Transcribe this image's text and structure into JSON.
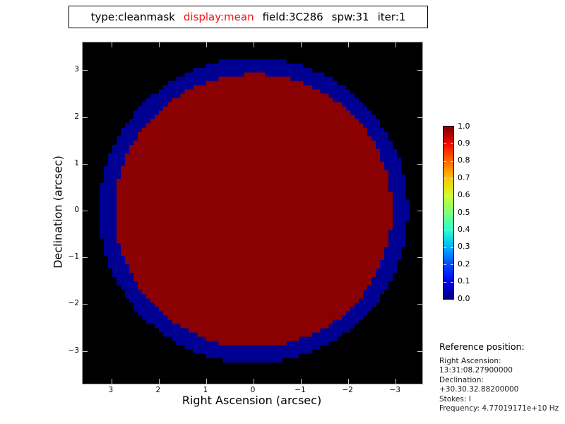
{
  "title_box": {
    "segments": [
      {
        "text": "type:cleanmask",
        "color": "#000000"
      },
      {
        "text": "display:mean",
        "color": "#f21414"
      },
      {
        "text": "field:3C286",
        "color": "#000000"
      },
      {
        "text": "spw:31",
        "color": "#000000"
      },
      {
        "text": "iter:1",
        "color": "#000000"
      }
    ]
  },
  "chart_data": {
    "type": "heatmap",
    "title": "type:cleanmask display:mean field:3C286 spw:31 iter:1",
    "xlabel": "Right Ascension (arcsec)",
    "ylabel": "Declination (arcsec)",
    "x_ticks": [
      3,
      2,
      1,
      0,
      -1,
      -2,
      -3
    ],
    "y_ticks": [
      3,
      2,
      1,
      0,
      -1,
      -2,
      -3
    ],
    "x_tick_labels": [
      "3",
      "2",
      "1",
      "0",
      "−1",
      "−2",
      "−3"
    ],
    "y_tick_labels": [
      "3",
      "2",
      "1",
      "0",
      "−1",
      "−2",
      "−3"
    ],
    "x_range_arcsec": [
      3.6,
      -3.6
    ],
    "y_range_arcsec": [
      -3.6,
      3.6
    ],
    "x_axis_note": "RA increases to the left",
    "background_color": "#000000",
    "grid_n": 80,
    "regions": [
      {
        "name": "outer-mask-ring",
        "shape": "circle",
        "radius_arcsec": 3.26,
        "color": "#000093"
      },
      {
        "name": "inner-mask-disk",
        "shape": "circle",
        "radius_arcsec": 2.92,
        "color": "#8b0000",
        "value": 1.0
      }
    ],
    "colorbar": {
      "min": 0.0,
      "max": 1.0,
      "tick_labels": [
        "0.0",
        "0.1",
        "0.2",
        "0.3",
        "0.4",
        "0.5",
        "0.6",
        "0.7",
        "0.8",
        "0.9",
        "1.0"
      ],
      "colormap": "jet",
      "gradient_stops_bottom_to_top": [
        "#000080",
        "#0000f1",
        "#004cff",
        "#00b3ff",
        "#29ffce",
        "#7dff7a",
        "#ceff29",
        "#ffc400",
        "#ff6800",
        "#f10800",
        "#800000"
      ]
    }
  },
  "reference": {
    "heading": "Reference position:",
    "lines": [
      "Right Ascension: 13:31:08.27900000",
      "Declination: +30.30.32.88200000",
      "Stokes: I",
      "Frequency: 4.77019171e+10 Hz"
    ]
  }
}
